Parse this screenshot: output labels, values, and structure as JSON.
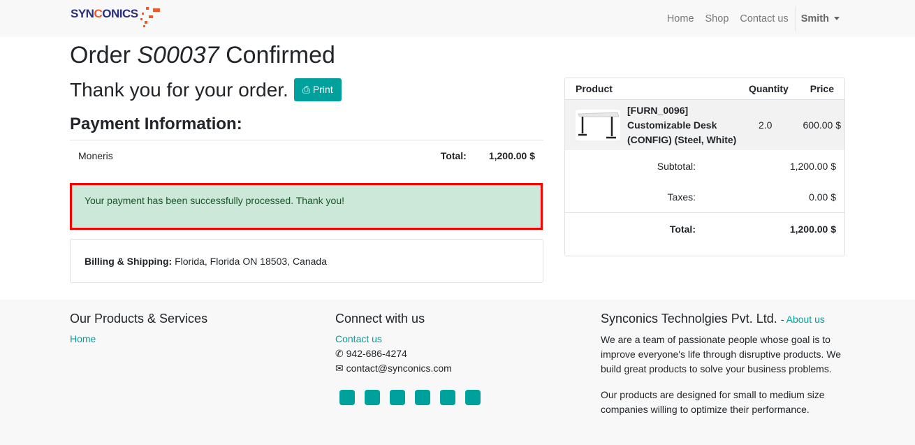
{
  "nav": {
    "logo": "SYNCONICS",
    "links": [
      "Home",
      "Shop",
      "Contact us"
    ],
    "user": "Smith"
  },
  "order": {
    "title_prefix": "Order",
    "order_id": "S00037",
    "title_suffix": "Confirmed",
    "thanks": "Thank you for your order.",
    "print_label": "Print"
  },
  "payment": {
    "heading": "Payment Information:",
    "method": "Moneris",
    "total_label": "Total:",
    "total": "1,200.00 $",
    "alert": "Your payment has been successfully processed. Thank you!"
  },
  "billing": {
    "label": "Billing & Shipping:",
    "address": "Florida, Florida ON 18503, Canada"
  },
  "cart": {
    "headers": [
      "Product",
      "Quantity",
      "Price"
    ],
    "items": [
      {
        "name": "[FURN_0096] Customizable Desk (CONFIG) (Steel, White)",
        "qty": "2.0",
        "price": "600.00 $"
      }
    ],
    "subtotal_label": "Subtotal:",
    "subtotal": "1,200.00 $",
    "taxes_label": "Taxes:",
    "taxes": "0.00 $",
    "total_label": "Total:",
    "total": "1,200.00 $"
  },
  "footer": {
    "col1": {
      "title": "Our Products & Services",
      "links": [
        "Home"
      ]
    },
    "col2": {
      "title": "Connect with us",
      "contact": "Contact us",
      "phone": "942-686-4274",
      "email": "contact@synconics.com",
      "social": [
        "facebook-icon",
        "twitter-icon",
        "linkedin-icon",
        "youtube-icon",
        "github-icon",
        "instagram-icon"
      ]
    },
    "col3": {
      "title": "Synconics Technolgies Pvt. Ltd.",
      "about": "About us",
      "p1": "We are a team of passionate people whose goal is to improve everyone's life through disruptive products. We build great products to solve your business problems.",
      "p2": "Our products are designed for small to medium size companies willing to optimize their performance."
    }
  },
  "colors": {
    "accent": "#00a09d",
    "alert_bg": "#cce8d8",
    "highlight": "#ff0000"
  }
}
